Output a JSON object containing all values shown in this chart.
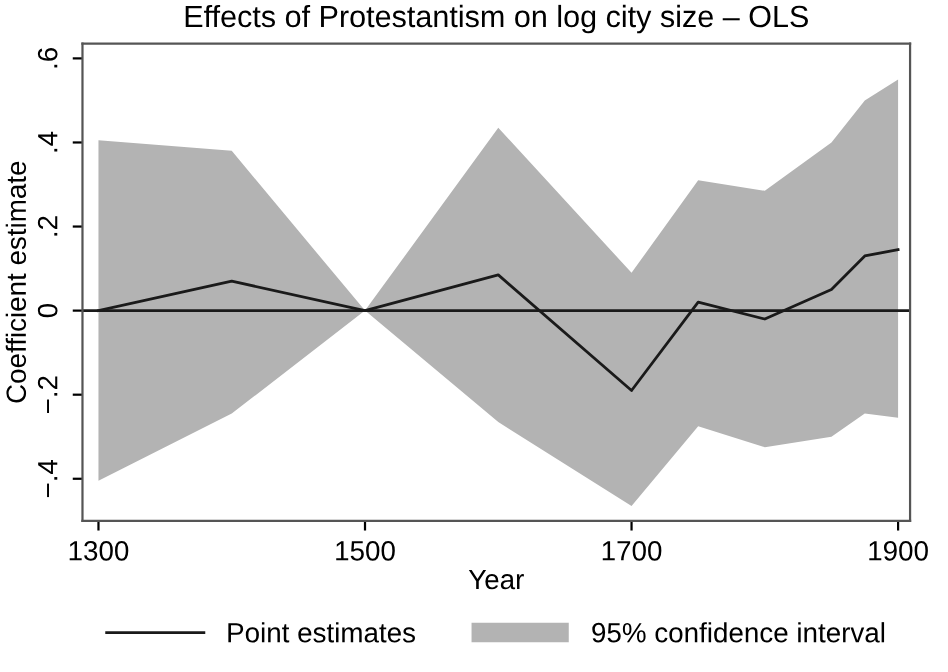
{
  "chart_data": {
    "type": "line",
    "title": "Effects of Protestantism on log city size – OLS",
    "xlabel": "Year",
    "ylabel": "Coefficient estimate",
    "x": [
      1300,
      1400,
      1500,
      1600,
      1700,
      1750,
      1800,
      1850,
      1875,
      1900
    ],
    "series": [
      {
        "name": "Point estimates",
        "color": "#1a1a1a",
        "values": [
          0,
          0.07,
          0,
          0.085,
          -0.19,
          0.02,
          -0.02,
          0.05,
          0.13,
          0.145
        ]
      },
      {
        "name": "95% confidence interval",
        "type": "area",
        "color": "#b3b3b3",
        "values": [
          null,
          null,
          null,
          null,
          null,
          null,
          null,
          null,
          null,
          null
        ],
        "lower": [
          -0.405,
          -0.245,
          0,
          -0.265,
          -0.465,
          -0.275,
          -0.325,
          -0.3,
          -0.245,
          -0.255
        ],
        "upper": [
          0.405,
          0.38,
          0,
          0.435,
          0.09,
          0.31,
          0.285,
          0.4,
          0.5,
          0.55
        ]
      }
    ],
    "ref_lines": [
      {
        "axis": "y",
        "value": 0,
        "color": "#1a1a1a"
      }
    ],
    "xlim": [
      1288,
      1909
    ],
    "xticks": [
      1300,
      1500,
      1700,
      1900
    ],
    "ylim": [
      -0.5,
      0.635
    ],
    "yticks": [
      {
        "value": 0.6,
        "label": ".6"
      },
      {
        "value": 0.4,
        "label": ".4"
      },
      {
        "value": 0.2,
        "label": ".2"
      },
      0,
      {
        "value": -0.2,
        "label": "−.2"
      },
      {
        "value": -0.4,
        "label": "−.4"
      }
    ],
    "grid": false,
    "legend": "bottom",
    "marker": "none",
    "line_style": "solid"
  }
}
